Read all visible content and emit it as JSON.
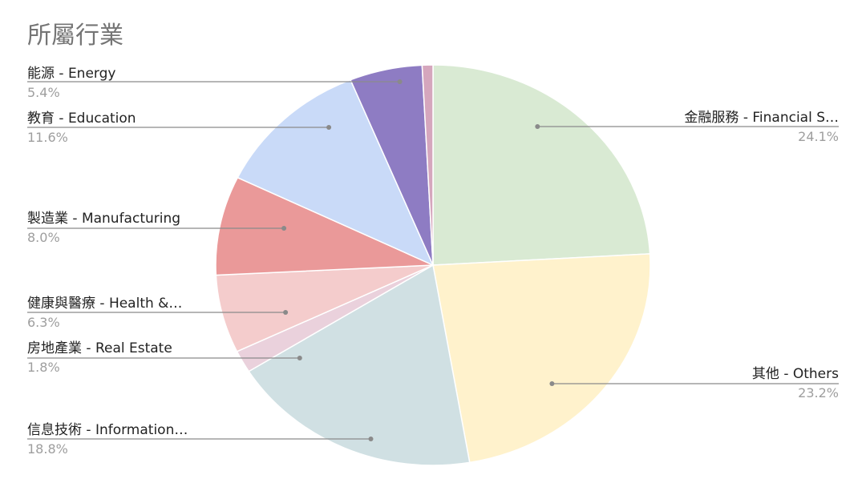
{
  "chart_data": {
    "type": "pie",
    "title": "所屬行業",
    "legend": "side-labels",
    "slices": [
      {
        "label": "金融服務 - Financial S…",
        "value": 24.1,
        "pct_label": "24.1%",
        "color": "#d9ead3"
      },
      {
        "label": "其他 - Others",
        "value": 23.2,
        "pct_label": "23.2%",
        "color": "#fff2cc"
      },
      {
        "label": "信息技術 - Information…",
        "value": 18.8,
        "pct_label": "18.8%",
        "color": "#d0e0e3"
      },
      {
        "label": "房地產業 - Real Estate",
        "value": 1.8,
        "pct_label": "1.8%",
        "color": "#ead1dc"
      },
      {
        "label": "健康與醫療 - Health &…",
        "value": 6.3,
        "pct_label": "6.3%",
        "color": "#f4cccc"
      },
      {
        "label": "製造業 - Manufacturing",
        "value": 8.0,
        "pct_label": "8.0%",
        "color": "#ea9999"
      },
      {
        "label": "教育 - Education",
        "value": 11.6,
        "pct_label": "11.6%",
        "color": "#c9daf8"
      },
      {
        "label": "能源 - Energy",
        "value": 5.4,
        "pct_label": "5.4%",
        "color": "#8e7cc3"
      },
      {
        "label": "",
        "value": 0.8,
        "pct_label": "",
        "color": "#d5a6bd"
      }
    ]
  }
}
